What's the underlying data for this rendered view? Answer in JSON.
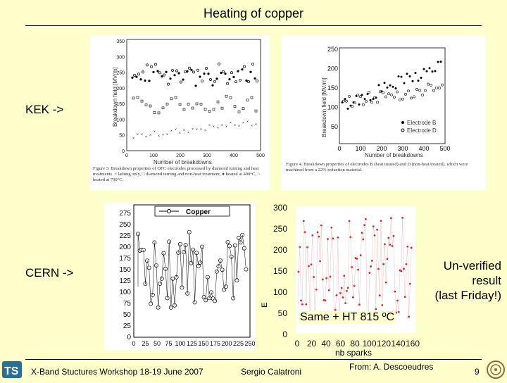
{
  "slide": {
    "title": "Heating of copper",
    "page_number": "9"
  },
  "labels": {
    "kek": "KEK ->",
    "cern": "CERN ->",
    "unverified_line1": "Un-verified",
    "unverified_line2": "result",
    "unverified_line3": "(last Friday!)",
    "same_ht": "Same + HT 815 ºC",
    "from": "From: A. Descoeudres"
  },
  "footer": {
    "workshop": "X-Band Stuctures Workshop 18-19 June 2007",
    "author": "Sergio Calatroni"
  },
  "fig3": {
    "ylabel": "Breakdown field [MV/m]",
    "xlabel": "Number of breakdowns",
    "yticks": [
      "350",
      "300",
      "250",
      "200",
      "150",
      "100",
      "50",
      "0"
    ],
    "xticks": [
      "0",
      "100",
      "200",
      "300",
      "400",
      "500"
    ],
    "caption": "Figure 3. Breakdown properties of OFC electrodes processed by diamond turning and heat treatments. × lathing only, □ diamond turning and non-heat treatment, ● heated at 400°C, ○ heated at 700°C."
  },
  "fig4": {
    "ylabel": "Breakdown field [MV/m]",
    "xlabel": "Number of breakdowns",
    "yticks": [
      "250",
      "200",
      "150",
      "100",
      "50"
    ],
    "xticks": [
      "0",
      "100",
      "200",
      "300",
      "400",
      "500"
    ],
    "legend": [
      "Electrode B",
      "Electrode D"
    ],
    "caption": "Figure 4. Breakdown properties of electrodes B (heat treated) and D (non-heat treated), which were machined from a 22% reduction material."
  },
  "copper_chart": {
    "legend": "Copper",
    "yticks": [
      "275",
      "250",
      "225",
      "200",
      "175",
      "150",
      "125",
      "100",
      "75",
      "50",
      "25",
      "0"
    ],
    "xticks": [
      "0",
      "25",
      "50",
      "75",
      "100",
      "125",
      "150",
      "175",
      "200",
      "225",
      "250"
    ]
  },
  "descoeudres_chart": {
    "yticks": [
      "300",
      "250",
      "200",
      "150",
      "100",
      "50",
      "0"
    ],
    "xticks": [
      "0",
      "20",
      "40",
      "60",
      "80",
      "100",
      "120",
      "140",
      "160"
    ],
    "xlabel": "nb sparks",
    "ylabel": "E"
  },
  "colors": {
    "background": "#ffffcc",
    "series_red": "#cc2222"
  }
}
